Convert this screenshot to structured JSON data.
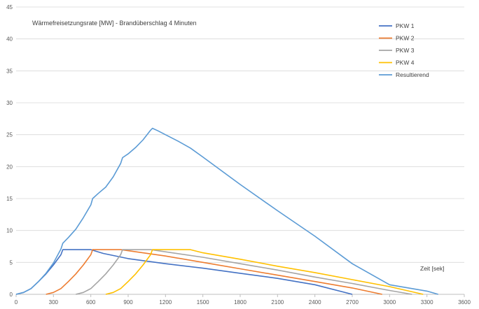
{
  "chart_data": {
    "type": "line",
    "title": "Wärmefreisetzungsrate [MW] - Brandüberschlag 4 Minuten",
    "xlabel": "Zeit [sek]",
    "ylabel": "",
    "xlim": [
      0,
      3600
    ],
    "ylim": [
      0,
      45
    ],
    "xticks": [
      0,
      300,
      600,
      900,
      1200,
      1500,
      1800,
      2100,
      2400,
      2700,
      3000,
      3300,
      3600
    ],
    "yticks": [
      0,
      5,
      10,
      15,
      20,
      25,
      30,
      35,
      40,
      45
    ],
    "grid": "horizontal",
    "legend_position": "top-right",
    "series": [
      {
        "name": "PKW 1",
        "color": "#4472C4",
        "points": [
          [
            0,
            0
          ],
          [
            60,
            0.3
          ],
          [
            120,
            0.9
          ],
          [
            180,
            2
          ],
          [
            240,
            3.2
          ],
          [
            300,
            4.6
          ],
          [
            360,
            6.2
          ],
          [
            375,
            7
          ],
          [
            600,
            7
          ],
          [
            700,
            6.4
          ],
          [
            900,
            5.6
          ],
          [
            1200,
            4.8
          ],
          [
            1500,
            4.1
          ],
          [
            1800,
            3.3
          ],
          [
            2100,
            2.5
          ],
          [
            2400,
            1.5
          ],
          [
            2700,
            0
          ]
        ]
      },
      {
        "name": "PKW 2",
        "color": "#ED7D31",
        "points": [
          [
            240,
            0
          ],
          [
            300,
            0.3
          ],
          [
            360,
            0.9
          ],
          [
            420,
            2
          ],
          [
            480,
            3.2
          ],
          [
            540,
            4.6
          ],
          [
            600,
            6.2
          ],
          [
            615,
            7
          ],
          [
            840,
            7
          ],
          [
            1200,
            6
          ],
          [
            1500,
            5
          ],
          [
            1800,
            4
          ],
          [
            2100,
            3
          ],
          [
            2400,
            2
          ],
          [
            2700,
            1
          ],
          [
            2940,
            0
          ]
        ]
      },
      {
        "name": "PKW 3",
        "color": "#A5A5A5",
        "points": [
          [
            480,
            0
          ],
          [
            540,
            0.3
          ],
          [
            600,
            0.9
          ],
          [
            660,
            2
          ],
          [
            720,
            3.2
          ],
          [
            780,
            4.6
          ],
          [
            840,
            6.2
          ],
          [
            855,
            7
          ],
          [
            1080,
            7
          ],
          [
            1500,
            5.8
          ],
          [
            1800,
            4.8
          ],
          [
            2100,
            3.8
          ],
          [
            2400,
            2.7
          ],
          [
            2700,
            1.7
          ],
          [
            3000,
            0.6
          ],
          [
            3180,
            0
          ]
        ]
      },
      {
        "name": "PKW 4",
        "color": "#FFC000",
        "points": [
          [
            720,
            0
          ],
          [
            780,
            0.3
          ],
          [
            840,
            0.9
          ],
          [
            900,
            2
          ],
          [
            960,
            3.2
          ],
          [
            1020,
            4.6
          ],
          [
            1080,
            6.2
          ],
          [
            1095,
            7
          ],
          [
            1400,
            7
          ],
          [
            1500,
            6.5
          ],
          [
            1800,
            5.5
          ],
          [
            2100,
            4.4
          ],
          [
            2400,
            3.4
          ],
          [
            2700,
            2.3
          ],
          [
            3000,
            1.2
          ],
          [
            3270,
            0
          ]
        ]
      },
      {
        "name": "Resultierend",
        "color": "#5B9BD5",
        "points": [
          [
            0,
            0
          ],
          [
            60,
            0.3
          ],
          [
            120,
            0.9
          ],
          [
            180,
            2
          ],
          [
            240,
            3.3
          ],
          [
            300,
            4.9
          ],
          [
            360,
            7.1
          ],
          [
            375,
            8
          ],
          [
            420,
            8.9
          ],
          [
            480,
            10.2
          ],
          [
            540,
            12
          ],
          [
            600,
            14
          ],
          [
            615,
            15
          ],
          [
            660,
            15.8
          ],
          [
            720,
            16.8
          ],
          [
            780,
            18.4
          ],
          [
            840,
            20.5
          ],
          [
            855,
            21.4
          ],
          [
            900,
            22
          ],
          [
            960,
            23
          ],
          [
            1020,
            24.2
          ],
          [
            1080,
            25.7
          ],
          [
            1095,
            26
          ],
          [
            1140,
            25.6
          ],
          [
            1200,
            25
          ],
          [
            1300,
            24
          ],
          [
            1400,
            22.9
          ],
          [
            1500,
            21.5
          ],
          [
            1800,
            17.2
          ],
          [
            2100,
            13.1
          ],
          [
            2400,
            9.1
          ],
          [
            2700,
            4.8
          ],
          [
            3000,
            1.5
          ],
          [
            3300,
            0.5
          ],
          [
            3390,
            0
          ]
        ]
      }
    ]
  }
}
